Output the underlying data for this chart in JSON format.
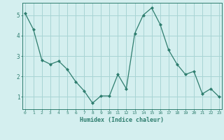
{
  "x": [
    0,
    1,
    2,
    3,
    4,
    5,
    6,
    7,
    8,
    9,
    10,
    11,
    12,
    13,
    14,
    15,
    16,
    17,
    18,
    19,
    20,
    21,
    22,
    23
  ],
  "y": [
    5.1,
    4.3,
    2.8,
    2.6,
    2.75,
    2.35,
    1.75,
    1.3,
    0.7,
    1.05,
    1.05,
    2.1,
    1.4,
    4.1,
    5.0,
    5.35,
    4.55,
    3.3,
    2.6,
    2.1,
    2.25,
    1.15,
    1.4,
    1.0
  ],
  "xlabel": "Humidex (Indice chaleur)",
  "line_color": "#2e7d6e",
  "marker": "D",
  "marker_size": 2.0,
  "bg_color": "#d4efef",
  "grid_color": "#a8d4d4",
  "tick_color": "#2e7d6e",
  "label_color": "#2e7d6e",
  "spine_color": "#2e7d6e",
  "ylim": [
    0.4,
    5.6
  ],
  "yticks": [
    1,
    2,
    3,
    4,
    5
  ],
  "xticks": [
    0,
    1,
    2,
    3,
    4,
    5,
    6,
    7,
    8,
    9,
    10,
    11,
    12,
    13,
    14,
    15,
    16,
    17,
    18,
    19,
    20,
    21,
    22,
    23
  ],
  "xlim": [
    -0.3,
    23.3
  ]
}
